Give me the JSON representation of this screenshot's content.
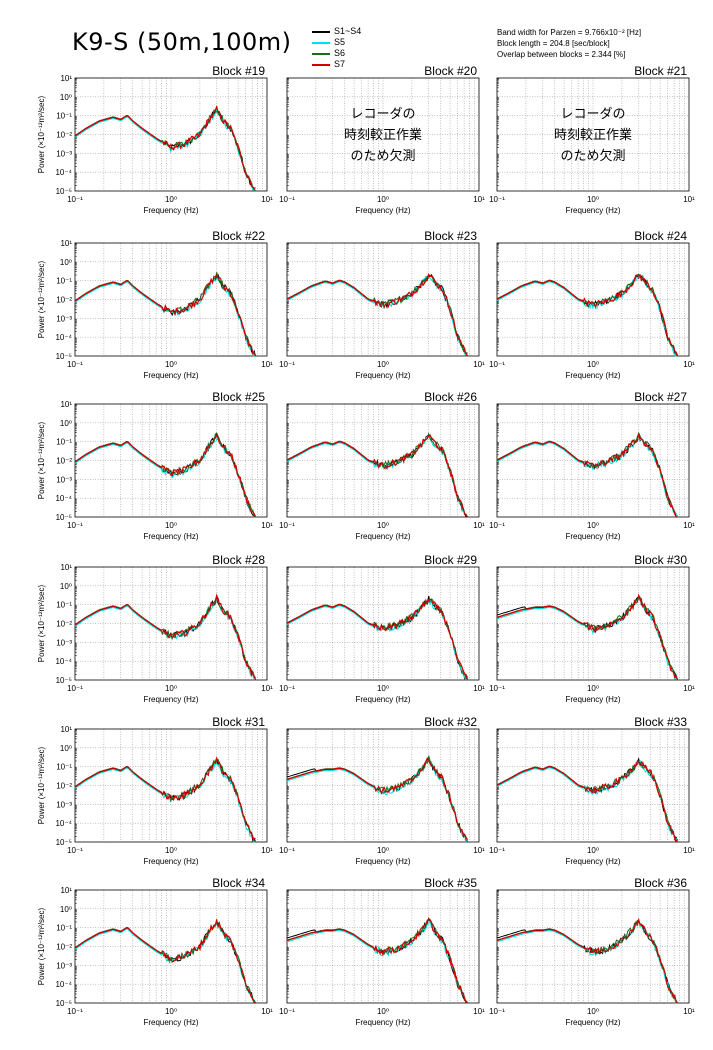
{
  "header": {
    "title": "K9-S (50m,100m)",
    "parameters": [
      "Band width for Parzen = 9.766x10⁻² [Hz]",
      "Block length = 204.8 [sec/block]",
      "Overlap between blocks = 2.344 [%]"
    ]
  },
  "legend": [
    {
      "name": "S1~S4",
      "color": "#000000"
    },
    {
      "name": "S5",
      "color": "#00e0e0"
    },
    {
      "name": "S6",
      "color": "#1a6b1a"
    },
    {
      "name": "S7",
      "color": "#d40000"
    }
  ],
  "axes_text": {
    "xlabel": "Frequency (Hz)",
    "ylabel": "Power (×10⁻¹²m²/sec)",
    "x_tick_labels": [
      "10⁻¹",
      "10⁰",
      "10¹"
    ],
    "y_tick_labels": [
      "10¹",
      "10⁰",
      "10⁻¹",
      "10⁻²",
      "10⁻³",
      "10⁻⁴",
      "10⁻⁵"
    ]
  },
  "missing_note": [
    "レコーダの",
    "時刻較正作業",
    "のため欠測"
  ],
  "chart_data": {
    "type": "line",
    "x_scale": "log",
    "y_scale": "log",
    "xlim": [
      0.1,
      10
    ],
    "ylim": [
      1e-05,
      10
    ],
    "grid": true,
    "series_names": [
      "S1~S4",
      "S5",
      "S6",
      "S7"
    ],
    "panels": [
      {
        "block": "Block #19",
        "missing": false,
        "shape": "A"
      },
      {
        "block": "Block #20",
        "missing": true
      },
      {
        "block": "Block #21",
        "missing": true
      },
      {
        "block": "Block #22",
        "missing": false,
        "shape": "A"
      },
      {
        "block": "Block #23",
        "missing": false,
        "shape": "B"
      },
      {
        "block": "Block #24",
        "missing": false,
        "shape": "B"
      },
      {
        "block": "Block #25",
        "missing": false,
        "shape": "A"
      },
      {
        "block": "Block #26",
        "missing": false,
        "shape": "B"
      },
      {
        "block": "Block #27",
        "missing": false,
        "shape": "B"
      },
      {
        "block": "Block #28",
        "missing": false,
        "shape": "A"
      },
      {
        "block": "Block #29",
        "missing": false,
        "shape": "B"
      },
      {
        "block": "Block #30",
        "missing": false,
        "shape": "C"
      },
      {
        "block": "Block #31",
        "missing": false,
        "shape": "A"
      },
      {
        "block": "Block #32",
        "missing": false,
        "shape": "C"
      },
      {
        "block": "Block #33",
        "missing": false,
        "shape": "B"
      },
      {
        "block": "Block #34",
        "missing": false,
        "shape": "A"
      },
      {
        "block": "Block #35",
        "missing": false,
        "shape": "C"
      },
      {
        "block": "Block #36",
        "missing": false,
        "shape": "C"
      }
    ],
    "shapes": {
      "A": {
        "freq": [
          0.1,
          0.13,
          0.18,
          0.25,
          0.3,
          0.35,
          0.4,
          0.5,
          0.7,
          1.0,
          1.4,
          2.0,
          2.6,
          3.0,
          3.5,
          4.2,
          5.0,
          6.0,
          7.0,
          7.5
        ],
        "power": [
          0.008,
          0.02,
          0.05,
          0.08,
          0.06,
          0.1,
          0.05,
          0.02,
          0.006,
          0.002,
          0.003,
          0.01,
          0.08,
          0.2,
          0.05,
          0.02,
          0.002,
          0.0001,
          2e-05,
          1e-05
        ]
      },
      "B": {
        "freq": [
          0.1,
          0.13,
          0.18,
          0.25,
          0.3,
          0.35,
          0.4,
          0.5,
          0.7,
          1.0,
          1.4,
          2.0,
          2.6,
          3.0,
          3.5,
          4.2,
          5.0,
          6.0,
          7.0,
          7.5
        ],
        "power": [
          0.01,
          0.02,
          0.05,
          0.09,
          0.07,
          0.1,
          0.08,
          0.04,
          0.01,
          0.005,
          0.008,
          0.02,
          0.08,
          0.2,
          0.08,
          0.03,
          0.003,
          0.0001,
          2e-05,
          1e-05
        ]
      },
      "C": {
        "freq": [
          0.1,
          0.13,
          0.18,
          0.25,
          0.3,
          0.35,
          0.4,
          0.5,
          0.7,
          1.0,
          1.4,
          2.0,
          2.6,
          3.0,
          3.5,
          4.2,
          5.0,
          6.0,
          7.0,
          7.5
        ],
        "power": [
          0.02,
          0.03,
          0.05,
          0.07,
          0.07,
          0.08,
          0.07,
          0.04,
          0.012,
          0.005,
          0.007,
          0.02,
          0.08,
          0.25,
          0.06,
          0.02,
          0.002,
          0.0001,
          2e-05,
          1e-05
        ]
      }
    }
  }
}
